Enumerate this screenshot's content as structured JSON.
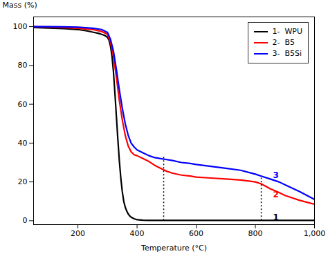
{
  "chart_data": {
    "type": "line",
    "xlabel": "Temperature (°C)",
    "ylabel": "Mass (%)",
    "xlim": [
      50,
      1000
    ],
    "ylim": [
      -2,
      105
    ],
    "xticks": [
      200,
      400,
      600,
      800,
      1000
    ],
    "yticks": [
      0,
      20,
      40,
      60,
      80,
      100
    ],
    "grid": false,
    "legend": "upper right",
    "vlines": [
      {
        "x": 490,
        "y_start": 0,
        "y_end": 33
      },
      {
        "x": 820,
        "y_start": 0,
        "y_end": 22
      }
    ],
    "annotations": [
      {
        "x": 855,
        "y": 1.5,
        "text": "1",
        "color": "#000000"
      },
      {
        "x": 855,
        "y": 13.5,
        "text": "2",
        "color": "#ff0000"
      },
      {
        "x": 855,
        "y": 23.5,
        "text": "3",
        "color": "#0000ff"
      }
    ],
    "series": [
      {
        "name": "1-  WPU",
        "color": "#000000",
        "x": [
          50,
          100,
          150,
          200,
          230,
          255,
          270,
          280,
          290,
          300,
          305,
          310,
          315,
          320,
          325,
          330,
          335,
          340,
          345,
          350,
          355,
          360,
          365,
          370,
          375,
          380,
          390,
          400,
          420,
          440,
          460,
          480,
          500,
          600,
          700,
          800,
          900,
          1000
        ],
        "values": [
          99.5,
          99.3,
          99.0,
          98.5,
          97.8,
          97.0,
          96.5,
          96.0,
          95.5,
          94.5,
          93.0,
          90.0,
          85.0,
          77.0,
          66.0,
          54.0,
          42.0,
          31.0,
          22.0,
          15.0,
          10.0,
          7.0,
          5.0,
          3.5,
          2.5,
          1.8,
          1.0,
          0.5,
          0.3,
          0.2,
          0.2,
          0.2,
          0.2,
          0.2,
          0.2,
          0.2,
          0.2,
          0.2
        ]
      },
      {
        "name": "2-  B5",
        "color": "#ff0000",
        "x": [
          50,
          100,
          150,
          200,
          250,
          280,
          300,
          310,
          320,
          330,
          340,
          350,
          360,
          370,
          380,
          390,
          400,
          420,
          440,
          460,
          480,
          500,
          520,
          550,
          580,
          600,
          650,
          700,
          750,
          800,
          820,
          850,
          880,
          900,
          950,
          1000
        ],
        "values": [
          100,
          99.8,
          99.5,
          99.2,
          98.5,
          97.5,
          96.0,
          92.0,
          85.0,
          74.0,
          62.0,
          52.0,
          44.0,
          38.5,
          35.5,
          34.0,
          33.5,
          32.0,
          30.5,
          28.5,
          27.0,
          25.5,
          24.5,
          23.5,
          23.0,
          22.5,
          22.0,
          21.5,
          21.0,
          20.0,
          19.0,
          16.5,
          14.5,
          13.0,
          10.5,
          8.5
        ]
      },
      {
        "name": "3-  B5Si",
        "color": "#0000ff",
        "x": [
          50,
          100,
          150,
          200,
          250,
          280,
          300,
          310,
          320,
          330,
          340,
          350,
          360,
          370,
          380,
          390,
          400,
          420,
          440,
          460,
          480,
          500,
          520,
          550,
          580,
          600,
          650,
          700,
          750,
          800,
          820,
          850,
          880,
          900,
          950,
          1000
        ],
        "values": [
          100,
          100,
          99.9,
          99.7,
          99.2,
          98.5,
          97.0,
          93.5,
          87.5,
          78.0,
          67.5,
          58.0,
          50.0,
          44.0,
          40.0,
          38.0,
          36.5,
          35.0,
          33.5,
          32.5,
          32.0,
          31.5,
          31.0,
          30.0,
          29.5,
          29.0,
          28.0,
          27.0,
          26.0,
          24.0,
          23.0,
          21.5,
          20.0,
          18.5,
          15.0,
          11.0
        ]
      }
    ]
  }
}
